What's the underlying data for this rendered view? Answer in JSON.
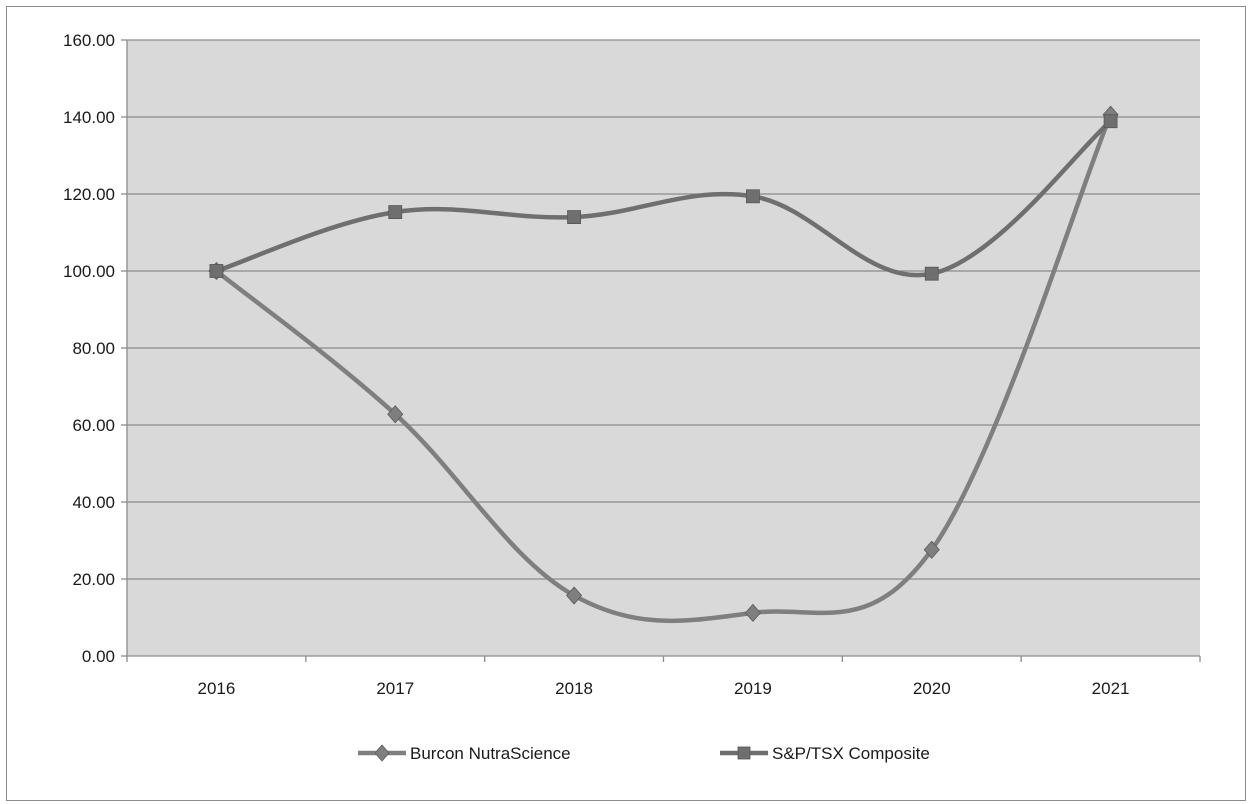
{
  "chart_data": {
    "type": "line",
    "title": "",
    "xlabel": "",
    "ylabel": "",
    "categories": [
      "2016",
      "2017",
      "2018",
      "2019",
      "2020",
      "2021"
    ],
    "ylim": [
      0,
      160
    ],
    "y_ticks": [
      "0.00",
      "20.00",
      "40.00",
      "60.00",
      "80.00",
      "100.00",
      "120.00",
      "140.00",
      "160.00"
    ],
    "grid": true,
    "legend_position": "bottom",
    "series": [
      {
        "name": "Burcon NutraScience",
        "marker": "diamond",
        "color": "#7f7f7f",
        "values": [
          100.0,
          62.8,
          15.7,
          11.2,
          27.6,
          140.6
        ]
      },
      {
        "name": "S&P/TSX Composite",
        "marker": "square",
        "color": "#6f6f6f",
        "values": [
          100.0,
          115.3,
          114.0,
          119.4,
          99.3,
          138.9
        ]
      }
    ]
  }
}
